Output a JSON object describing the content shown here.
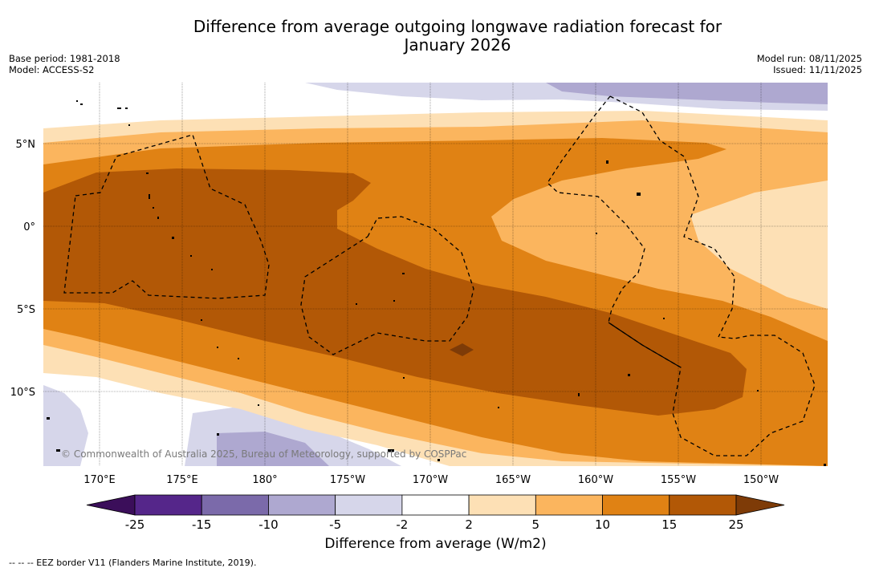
{
  "title_line1": "Difference from average outgoing longwave radiation forecast for",
  "title_line2": "January 2026",
  "base_period": "Base period: 1981-2018",
  "model": "Model: ACCESS-S2",
  "model_run": "Model run: 08/11/2025",
  "issued": "Issued: 11/11/2025",
  "copyright": "© Commonwealth of Australia 2025, Bureau of Meteorology, supported by COSPPac",
  "lat_labels": [
    "5°N",
    "0°",
    "5°S",
    "10°S"
  ],
  "lon_labels": [
    "170°E",
    "175°E",
    "180°",
    "175°W",
    "170°W",
    "165°W",
    "160°W",
    "155°W",
    "150°W"
  ],
  "colorbar": {
    "title": "Difference from average (W/m2)",
    "ticks": [
      "-25",
      "-15",
      "-10",
      "-5",
      "-2",
      "2",
      "5",
      "10",
      "15",
      "25"
    ],
    "colors": [
      "#3b0e5a",
      "#55268a",
      "#7b6aaa",
      "#aea8d0",
      "#d6d6ea",
      "#ffffff",
      "#fde0b5",
      "#fbb55e",
      "#e08214",
      "#b25806",
      "#7e3b07"
    ]
  },
  "legend_note": "--  --  -- EEZ border V11 (Flanders Marine Institute, 2019)."
}
